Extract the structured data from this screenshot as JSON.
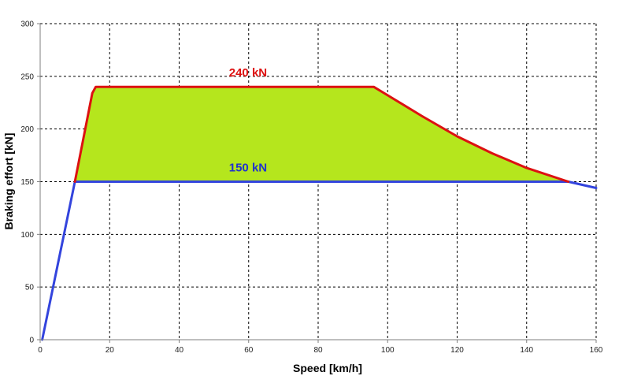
{
  "chart_data": {
    "type": "line",
    "title": "",
    "xlabel": "Speed [km/h]",
    "ylabel": "Braking effort [kN]",
    "xlim": [
      0,
      160
    ],
    "ylim": [
      0,
      300
    ],
    "x_ticks": [
      0,
      20,
      40,
      60,
      80,
      100,
      120,
      140,
      160
    ],
    "y_ticks": [
      0,
      50,
      100,
      150,
      200,
      250,
      300
    ],
    "grid": true,
    "legend": "none",
    "colors": {
      "red_curve": "#dd1111",
      "blue_curve": "#3344dd",
      "fill": "#b5e61d",
      "grid": "#000000",
      "axis": "#7f7f7f"
    },
    "series": [
      {
        "color": "#dd1111",
        "x": [
          10,
          15,
          16,
          96,
          100,
          110,
          120,
          130,
          140,
          152
        ],
        "y": [
          150,
          234,
          240,
          240,
          232,
          212,
          193,
          177,
          163,
          150
        ]
      },
      {
        "color": "#3344dd",
        "x": [
          0.6,
          10,
          152,
          160
        ],
        "y": [
          0,
          150,
          150,
          144
        ]
      }
    ],
    "fill_region": {
      "color": "#b5e61d",
      "x": [
        10,
        15,
        16,
        96,
        100,
        110,
        120,
        130,
        140,
        152
      ],
      "y_upper": [
        150,
        234,
        240,
        240,
        232,
        212,
        193,
        177,
        163,
        150
      ],
      "y_lower": 150
    },
    "annotations": [
      {
        "text": "240 kN",
        "x": 60,
        "y": 240,
        "color": "#dd1111"
      },
      {
        "text": "150 kN",
        "x": 60,
        "y": 150,
        "color": "#2233cc"
      }
    ]
  }
}
